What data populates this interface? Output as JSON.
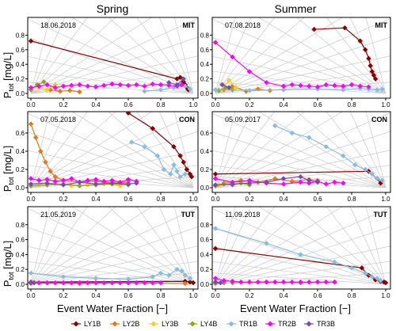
{
  "figure": {
    "column_titles": [
      "Spring",
      "Summer"
    ],
    "ylabel_main": "P",
    "ylabel_sub": "tot",
    "ylabel_unit": " [mg/L]",
    "xlabel": "Event Water Fraction [−]"
  },
  "colors": {
    "LY1B": "#8b0000",
    "LY2B": "#e07b1a",
    "LY3B": "#f0d020",
    "LY4B": "#8aa61a",
    "TR1B": "#87bde0",
    "TR2B": "#ff00ff",
    "TR3B": "#7b48b8"
  },
  "legend": [
    {
      "name": "LY1B",
      "color": "#8b0000"
    },
    {
      "name": "LY2B",
      "color": "#e07b1a"
    },
    {
      "name": "LY3B",
      "color": "#f0d020"
    },
    {
      "name": "LY4B",
      "color": "#8aa61a"
    },
    {
      "name": "TR1B",
      "color": "#87bde0"
    },
    {
      "name": "TR2B",
      "color": "#ff00ff"
    },
    {
      "name": "TR3B",
      "color": "#7b48b8"
    }
  ],
  "chart_data": [
    {
      "type": "line",
      "panel": "spring-mit",
      "date": "18.06.2018",
      "site": "MIT",
      "xlim": [
        0,
        1
      ],
      "ylim": [
        0,
        1.0
      ],
      "x_ticks": [
        "0.0",
        "0.2",
        "0.4",
        "0.6",
        "0.8",
        "1.0"
      ],
      "y_ticks": [
        "0.0",
        "0.2",
        "0.4",
        "0.6",
        "0.8"
      ],
      "series": [
        {
          "name": "LY1B",
          "x": [
            0.0,
            0.9,
            0.92,
            0.94,
            0.95,
            0.96,
            0.97
          ],
          "y": [
            0.72,
            0.2,
            0.22,
            0.16,
            0.12,
            0.08,
            0.05
          ]
        },
        {
          "name": "LY2B",
          "x": [
            0.12,
            0.18,
            0.24,
            0.3
          ],
          "y": [
            0.05,
            0.03,
            0.04,
            0.02
          ]
        },
        {
          "name": "LY3B",
          "x": [
            0.05,
            0.1,
            0.15
          ],
          "y": [
            0.08,
            0.05,
            0.12
          ]
        },
        {
          "name": "LY4B",
          "x": [
            0.0,
            0.04,
            0.08
          ],
          "y": [
            0.05,
            0.12,
            0.16
          ]
        },
        {
          "name": "TR1B",
          "x": [
            0.7,
            0.8,
            0.88,
            0.92,
            0.95,
            0.98
          ],
          "y": [
            0.03,
            0.05,
            0.08,
            0.12,
            0.1,
            0.06
          ]
        },
        {
          "name": "TR2B",
          "x": [
            0.0,
            0.05,
            0.1,
            0.15,
            0.2,
            0.25,
            0.3,
            0.35,
            0.4,
            0.45,
            0.5,
            0.55,
            0.6,
            0.65,
            0.7,
            0.75,
            0.8,
            0.85,
            0.9,
            0.93
          ],
          "y": [
            0.08,
            0.1,
            0.12,
            0.08,
            0.1,
            0.11,
            0.12,
            0.1,
            0.09,
            0.11,
            0.13,
            0.12,
            0.11,
            0.12,
            0.1,
            0.13,
            0.12,
            0.11,
            0.1,
            0.12
          ]
        },
        {
          "name": "TR3B",
          "x": [
            0.85,
            0.9,
            0.94
          ],
          "y": [
            0.15,
            0.12,
            0.2
          ]
        }
      ]
    },
    {
      "type": "line",
      "panel": "summer-mit",
      "date": "07.08.2018",
      "site": "MIT",
      "xlim": [
        0,
        1
      ],
      "ylim": [
        0,
        1.0
      ],
      "x_ticks": [
        "0.0",
        "0.2",
        "0.4",
        "0.6",
        "0.8",
        "1.0"
      ],
      "y_ticks": [
        "0.0",
        "0.2",
        "0.4",
        "0.6",
        "0.8"
      ],
      "series": [
        {
          "name": "LY1B",
          "x": [
            0.58,
            0.76,
            0.85,
            0.88,
            0.9,
            0.91,
            0.92,
            0.93,
            0.94
          ],
          "y": [
            0.88,
            0.9,
            0.72,
            0.6,
            0.48,
            0.38,
            0.3,
            0.25,
            0.2
          ]
        },
        {
          "name": "LY2B",
          "x": [
            0.05,
            0.1,
            0.18,
            0.25,
            0.32
          ],
          "y": [
            0.05,
            0.1,
            0.03,
            0.06,
            0.04
          ]
        },
        {
          "name": "LY3B",
          "x": [
            0.05,
            0.08,
            0.12
          ],
          "y": [
            0.1,
            0.18,
            0.08
          ]
        },
        {
          "name": "LY4B",
          "x": [
            0.02,
            0.06,
            0.1
          ],
          "y": [
            0.04,
            0.08,
            0.05
          ]
        },
        {
          "name": "TR1B",
          "x": [
            0.0,
            0.2,
            0.4,
            0.6,
            0.75,
            0.85,
            0.9,
            0.95,
            0.98
          ],
          "y": [
            0.05,
            0.04,
            0.05,
            0.06,
            0.05,
            0.07,
            0.06,
            0.05,
            0.06
          ]
        },
        {
          "name": "TR2B",
          "x": [
            0.0,
            0.1,
            0.2,
            0.3,
            0.4,
            0.45,
            0.5,
            0.55,
            0.6,
            0.65,
            0.7,
            0.75,
            0.8,
            0.85,
            0.9
          ],
          "y": [
            0.7,
            0.5,
            0.3,
            0.15,
            0.1,
            0.12,
            0.11,
            0.1,
            0.09,
            0.12,
            0.11,
            0.1,
            0.12,
            0.1,
            0.09
          ]
        },
        {
          "name": "TR3B",
          "x": [
            0.04,
            0.08
          ],
          "y": [
            0.12,
            0.08
          ]
        }
      ]
    },
    {
      "type": "line",
      "panel": "spring-con",
      "date": "07.05.2018",
      "site": "CON",
      "xlim": [
        0,
        1
      ],
      "ylim": [
        0,
        0.8
      ],
      "x_ticks": [
        "0.0",
        "0.2",
        "0.4",
        "0.6",
        "0.8",
        "1.0"
      ],
      "y_ticks": [
        "0.0",
        "0.2",
        "0.4",
        "0.6"
      ],
      "series": [
        {
          "name": "LY1B",
          "x": [
            0.6,
            0.75,
            0.88,
            0.92,
            0.94,
            0.96,
            0.98,
            0.99
          ],
          "y": [
            0.82,
            0.65,
            0.45,
            0.35,
            0.28,
            0.2,
            0.15,
            0.12
          ]
        },
        {
          "name": "LY2B",
          "x": [
            0.0,
            0.03,
            0.06,
            0.09,
            0.12,
            0.15,
            0.2,
            0.3,
            0.4,
            0.5,
            0.6
          ],
          "y": [
            0.7,
            0.55,
            0.4,
            0.28,
            0.18,
            0.12,
            0.08,
            0.06,
            0.07,
            0.05,
            0.06
          ]
        },
        {
          "name": "LY3B",
          "x": [
            0.05,
            0.15,
            0.25,
            0.35,
            0.45,
            0.55
          ],
          "y": [
            0.03,
            0.04,
            0.02,
            0.03,
            0.04,
            0.02
          ]
        },
        {
          "name": "LY4B",
          "x": [
            0.0,
            0.1,
            0.2,
            0.3,
            0.4,
            0.5,
            0.6
          ],
          "y": [
            0.02,
            0.03,
            0.04,
            0.02,
            0.03,
            0.04,
            0.03
          ]
        },
        {
          "name": "TR1B",
          "x": [
            0.62,
            0.7,
            0.78,
            0.82,
            0.86,
            0.88,
            0.9,
            0.92,
            0.95
          ],
          "y": [
            0.5,
            0.45,
            0.35,
            0.2,
            0.15,
            0.25,
            0.18,
            0.12,
            0.15
          ]
        },
        {
          "name": "TR2B",
          "x": [
            0.0,
            0.05,
            0.1,
            0.15,
            0.2,
            0.25,
            0.3,
            0.35,
            0.4,
            0.45,
            0.5,
            0.55,
            0.6,
            0.65
          ],
          "y": [
            0.1,
            0.08,
            0.09,
            0.07,
            0.08,
            0.1,
            0.06,
            0.08,
            0.09,
            0.07,
            0.08,
            0.06,
            0.09,
            0.07
          ]
        },
        {
          "name": "TR3B",
          "x": [
            0.0,
            0.1,
            0.2,
            0.3,
            0.4,
            0.5,
            0.6,
            0.65
          ],
          "y": [
            0.04,
            0.05,
            0.03,
            0.06,
            0.04,
            0.05,
            0.04,
            0.05
          ]
        }
      ]
    },
    {
      "type": "line",
      "panel": "summer-con",
      "date": "05.09.2017",
      "site": "CON",
      "xlim": [
        0,
        1
      ],
      "ylim": [
        0,
        0.8
      ],
      "x_ticks": [
        "0.0",
        "0.2",
        "0.4",
        "0.6",
        "0.8",
        "1.0"
      ],
      "y_ticks": [
        "0.0",
        "0.2",
        "0.4",
        "0.6"
      ],
      "series": [
        {
          "name": "LY1B",
          "x": [
            0.0,
            0.9,
            0.95,
            0.97
          ],
          "y": [
            0.15,
            0.18,
            0.1,
            0.05
          ]
        },
        {
          "name": "LY2B",
          "x": [
            0.05,
            0.15,
            0.25,
            0.35,
            0.45,
            0.55,
            0.6
          ],
          "y": [
            0.05,
            0.08,
            0.06,
            0.1,
            0.07,
            0.09,
            0.08
          ]
        },
        {
          "name": "LY3B",
          "x": [
            0.02,
            0.06,
            0.1
          ],
          "y": [
            0.03,
            0.05,
            0.04
          ]
        },
        {
          "name": "LY4B",
          "x": [
            0.0,
            0.05,
            0.1,
            0.15,
            0.2
          ],
          "y": [
            0.02,
            0.04,
            0.03,
            0.05,
            0.03
          ]
        },
        {
          "name": "TR1B",
          "x": [
            0.35,
            0.45,
            0.55,
            0.65,
            0.75,
            0.82,
            0.88,
            0.92,
            0.95,
            0.98
          ],
          "y": [
            0.68,
            0.6,
            0.55,
            0.45,
            0.35,
            0.25,
            0.2,
            0.15,
            0.1,
            0.08
          ]
        },
        {
          "name": "TR2B",
          "x": [
            0.0,
            0.1,
            0.2,
            0.3,
            0.4,
            0.5,
            0.55,
            0.6,
            0.65,
            0.7,
            0.75
          ],
          "y": [
            0.1,
            0.06,
            0.08,
            0.05,
            0.04,
            0.06,
            0.05,
            0.07,
            0.04,
            0.06,
            0.05
          ]
        },
        {
          "name": "TR3B",
          "x": [
            0.0,
            0.1,
            0.2,
            0.3,
            0.4,
            0.5,
            0.55,
            0.6
          ],
          "y": [
            0.03,
            0.04,
            0.05,
            0.06,
            0.1,
            0.12,
            0.08,
            0.06
          ]
        }
      ]
    },
    {
      "type": "line",
      "panel": "spring-tut",
      "date": "21.05.2019",
      "site": "TUT",
      "xlim": [
        0,
        1
      ],
      "ylim": [
        0,
        1.0
      ],
      "x_ticks": [
        "0.0",
        "0.2",
        "0.4",
        "0.6",
        "0.8",
        "1.0"
      ],
      "y_ticks": [
        "0.0",
        "0.2",
        "0.4",
        "0.6",
        "0.8"
      ],
      "series": [
        {
          "name": "LY1B",
          "x": [
            0.0,
            0.95,
            0.98,
            1.0
          ],
          "y": [
            0.03,
            0.04,
            0.03,
            0.02
          ]
        },
        {
          "name": "LY2B",
          "x": [
            0.0,
            0.3,
            0.6,
            0.95
          ],
          "y": [
            0.02,
            0.01,
            0.02,
            0.01
          ]
        },
        {
          "name": "LY3B",
          "x": [
            0.0,
            0.02
          ],
          "y": [
            0.02,
            0.03
          ]
        },
        {
          "name": "LY4B",
          "x": [
            0.0,
            0.02
          ],
          "y": [
            0.01,
            0.02
          ]
        },
        {
          "name": "TR1B",
          "x": [
            0.0,
            0.2,
            0.4,
            0.6,
            0.75,
            0.8,
            0.85,
            0.9,
            0.93,
            0.95,
            0.98
          ],
          "y": [
            0.15,
            0.1,
            0.08,
            0.07,
            0.1,
            0.15,
            0.12,
            0.2,
            0.18,
            0.12,
            0.08
          ]
        },
        {
          "name": "TR2B",
          "x": [
            0.0,
            0.05,
            0.1,
            0.15,
            0.2,
            0.25,
            0.3,
            0.35,
            0.4,
            0.45,
            0.5,
            0.55,
            0.6,
            0.65,
            0.7,
            0.75,
            0.8
          ],
          "y": [
            0.02,
            0.02,
            0.02,
            0.02,
            0.02,
            0.02,
            0.02,
            0.02,
            0.02,
            0.02,
            0.02,
            0.02,
            0.02,
            0.02,
            0.02,
            0.02,
            0.02
          ]
        },
        {
          "name": "TR3B",
          "x": [
            0.0,
            0.02
          ],
          "y": [
            0.03,
            0.02
          ]
        }
      ]
    },
    {
      "type": "line",
      "panel": "summer-tut",
      "date": "11.09.2018",
      "site": "TUT",
      "xlim": [
        0,
        1
      ],
      "ylim": [
        0,
        1.0
      ],
      "x_ticks": [
        "0.0",
        "0.2",
        "0.4",
        "0.6",
        "0.8",
        "1.0"
      ],
      "y_ticks": [
        "0.0",
        "0.2",
        "0.4",
        "0.6",
        "0.8"
      ],
      "series": [
        {
          "name": "LY1B",
          "x": [
            0.0,
            0.86,
            0.9,
            0.94,
            0.97,
            0.99,
            1.0
          ],
          "y": [
            0.48,
            0.22,
            0.12,
            0.06,
            0.04,
            0.03,
            0.02
          ]
        },
        {
          "name": "LY2B",
          "x": [
            0.1,
            0.3,
            0.5,
            0.7
          ],
          "y": [
            0.02,
            0.03,
            0.02,
            0.03
          ]
        },
        {
          "name": "LY3B",
          "x": [
            0.0,
            0.05
          ],
          "y": [
            0.02,
            0.03
          ]
        },
        {
          "name": "LY4B",
          "x": [
            0.0,
            0.05
          ],
          "y": [
            0.01,
            0.02
          ]
        },
        {
          "name": "TR1B",
          "x": [
            0.0,
            0.3,
            0.5,
            0.7,
            0.8,
            0.88,
            0.92,
            0.95,
            0.97
          ],
          "y": [
            0.75,
            0.55,
            0.4,
            0.3,
            0.22,
            0.15,
            0.1,
            0.08,
            0.05
          ]
        },
        {
          "name": "TR2B",
          "x": [
            0.0,
            0.05,
            0.1,
            0.15,
            0.2,
            0.25,
            0.3,
            0.35,
            0.4,
            0.45,
            0.5,
            0.55,
            0.6,
            0.65,
            0.7
          ],
          "y": [
            0.08,
            0.05,
            0.04,
            0.03,
            0.03,
            0.03,
            0.03,
            0.03,
            0.03,
            0.03,
            0.03,
            0.03,
            0.03,
            0.03,
            0.03
          ]
        },
        {
          "name": "TR3B",
          "x": [
            0.0,
            0.03
          ],
          "y": [
            0.03,
            0.02
          ]
        }
      ]
    }
  ]
}
